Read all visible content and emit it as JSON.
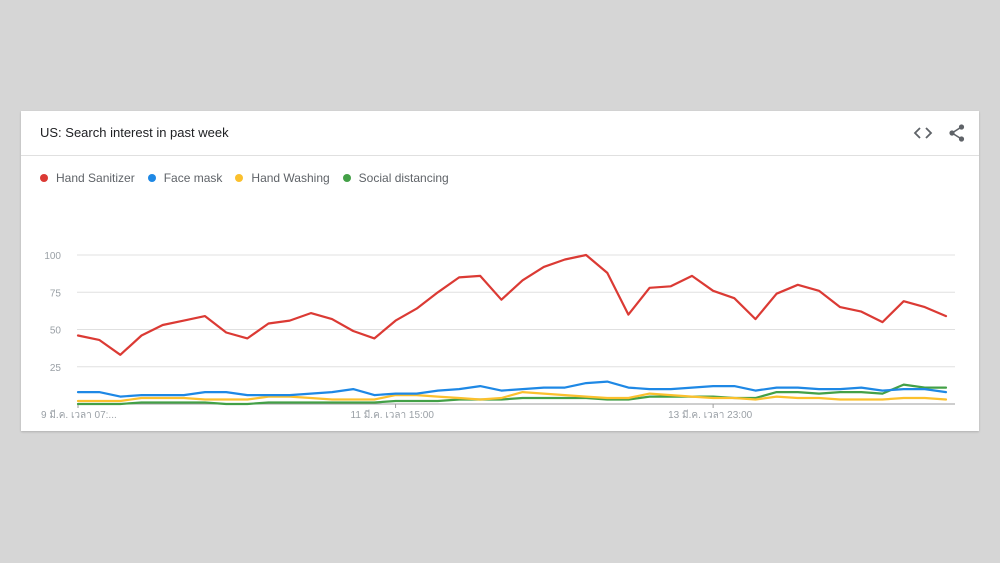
{
  "header": {
    "title": "US: Search interest in past week",
    "embed_icon": "code-embed-icon",
    "share_icon": "share-icon"
  },
  "chart_data": {
    "type": "line",
    "title": "US: Search interest in past week",
    "ylim": [
      0,
      100
    ],
    "yticks": [
      25,
      50,
      75,
      100
    ],
    "grid": true,
    "legend_position": "top-left",
    "x_tick_labels": [
      "9 มี.ค. เวลา 07:...",
      "11 มี.ค. เวลา 15:00",
      "13 มี.ค. เวลา 23:00"
    ],
    "series": [
      {
        "name": "Hand Sanitizer",
        "color": "#db3a34",
        "values": [
          46,
          43,
          33,
          46,
          53,
          56,
          59,
          48,
          44,
          54,
          56,
          61,
          57,
          49,
          44,
          56,
          64,
          75,
          85,
          86,
          70,
          83,
          92,
          97,
          100,
          88,
          60,
          78,
          79,
          86,
          76,
          71,
          57,
          74,
          80,
          76,
          65,
          62,
          55,
          69,
          65,
          59
        ]
      },
      {
        "name": "Face mask",
        "color": "#1e88e5",
        "values": [
          8,
          8,
          5,
          6,
          6,
          6,
          8,
          8,
          6,
          6,
          6,
          7,
          8,
          10,
          6,
          7,
          7,
          9,
          10,
          12,
          9,
          10,
          11,
          11,
          14,
          15,
          11,
          10,
          10,
          11,
          12,
          12,
          9,
          11,
          11,
          10,
          10,
          11,
          9,
          10,
          10,
          8
        ]
      },
      {
        "name": "Hand Washing",
        "color": "#fbc02d",
        "values": [
          2,
          2,
          2,
          4,
          4,
          4,
          3,
          3,
          3,
          5,
          5,
          4,
          3,
          3,
          3,
          6,
          6,
          5,
          4,
          3,
          4,
          8,
          7,
          6,
          5,
          4,
          4,
          7,
          6,
          5,
          4,
          4,
          3,
          5,
          4,
          4,
          3,
          3,
          3,
          4,
          4,
          3
        ]
      },
      {
        "name": "Social distancing",
        "color": "#43a047",
        "values": [
          0,
          0,
          0,
          1,
          1,
          1,
          1,
          0,
          0,
          1,
          1,
          1,
          1,
          1,
          1,
          2,
          2,
          2,
          3,
          3,
          3,
          4,
          4,
          4,
          4,
          3,
          3,
          5,
          5,
          5,
          5,
          4,
          4,
          8,
          8,
          7,
          8,
          8,
          7,
          13,
          11,
          11
        ]
      }
    ]
  }
}
